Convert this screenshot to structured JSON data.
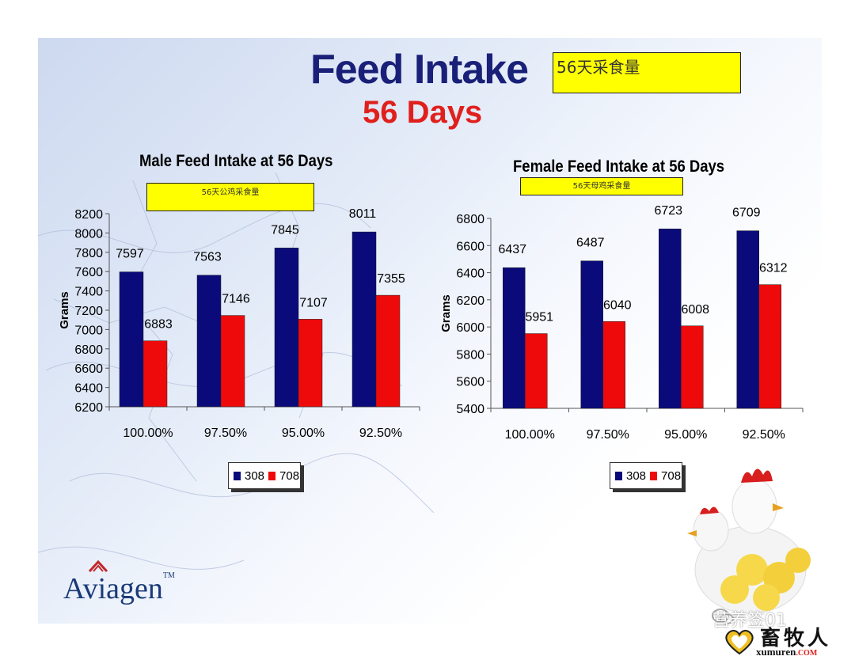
{
  "header": {
    "title": "Feed Intake",
    "title_cn": "56天采食量",
    "subtitle": "56 Days"
  },
  "colors": {
    "series_308": "#0a0a7a",
    "series_708": "#ee0a0a",
    "title": "#1a2078",
    "subtitle": "#e0201c",
    "note_bg": "#ffff00"
  },
  "chart_data": [
    {
      "type": "bar",
      "title": "Male Feed Intake at 56 Days",
      "note_cn": "56天公鸡采食量",
      "ylabel": "Grams",
      "xlabel": "",
      "categories": [
        "100.00%",
        "97.50%",
        "95.00%",
        "92.50%"
      ],
      "series": [
        {
          "name": "308",
          "values": [
            7597,
            7563,
            7845,
            8011
          ]
        },
        {
          "name": "708",
          "values": [
            6883,
            7146,
            7107,
            7355
          ]
        }
      ],
      "ylim": [
        6200,
        8200
      ],
      "yticks": [
        "6200",
        "6400",
        "6600",
        "6800",
        "7000",
        "7200",
        "7400",
        "7600",
        "7800",
        "8000",
        "8200"
      ],
      "grid": false,
      "legend": "bottom"
    },
    {
      "type": "bar",
      "title": "Female Feed Intake at 56 Days",
      "note_cn": "56天母鸡采食量",
      "ylabel": "Grams",
      "xlabel": "",
      "categories": [
        "100.00%",
        "97.50%",
        "95.00%",
        "92.50%"
      ],
      "series": [
        {
          "name": "308",
          "values": [
            6437,
            6487,
            6723,
            6709
          ]
        },
        {
          "name": "708",
          "values": [
            5951,
            6040,
            6008,
            6312
          ]
        }
      ],
      "ylim": [
        5400,
        6800
      ],
      "yticks": [
        "5400",
        "5600",
        "5800",
        "6000",
        "6200",
        "6400",
        "6600",
        "6800"
      ],
      "grid": false,
      "legend": "bottom"
    }
  ],
  "branding": {
    "logo": "Aviagen",
    "logo_tm": "TM",
    "watermark": "营养签01",
    "site_name": "畜牧人",
    "site_url": "xumuren",
    "site_tld": ".COM"
  },
  "icons": [
    "aviagen-logo-icon",
    "chicken-photo-icon",
    "wechat-icon",
    "heart-logo-icon"
  ]
}
